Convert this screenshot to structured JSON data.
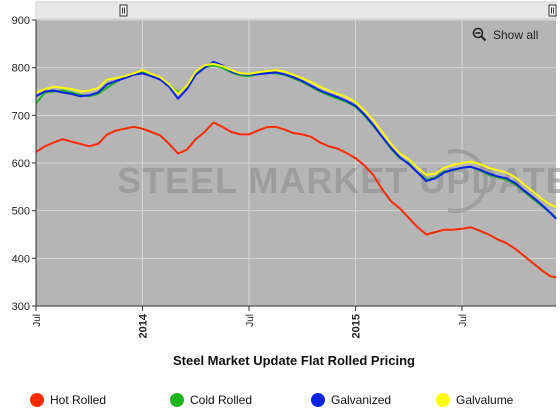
{
  "chart_data": {
    "type": "line",
    "title": "Steel Market Update Flat Rolled Pricing",
    "watermark": "STEEL MARKET UPDATE",
    "show_all_label": "Show all",
    "x_ticks": [
      {
        "t": 0.0,
        "label": "Jul",
        "bold": false
      },
      {
        "t": 6.0,
        "label": "2014",
        "bold": true
      },
      {
        "t": 12.0,
        "label": "Jul",
        "bold": false
      },
      {
        "t": 18.0,
        "label": "2015",
        "bold": true
      },
      {
        "t": 24.0,
        "label": "Jul",
        "bold": false
      }
    ],
    "xlim": [
      0,
      29.3
    ],
    "ylim": [
      300,
      900
    ],
    "yticks": [
      300,
      400,
      500,
      600,
      700,
      800,
      900
    ],
    "grid": true,
    "legend_position": "bottom",
    "x": [
      0,
      0.5,
      1.0,
      1.5,
      2.0,
      2.5,
      3.0,
      3.5,
      4.0,
      4.5,
      5.0,
      5.5,
      6.0,
      6.5,
      7.0,
      7.5,
      8.0,
      8.5,
      9.0,
      9.5,
      10.0,
      10.5,
      11.0,
      11.5,
      12.0,
      12.5,
      13.0,
      13.5,
      14.0,
      14.5,
      15.0,
      15.5,
      16.0,
      16.5,
      17.0,
      17.5,
      18.0,
      18.5,
      19.0,
      19.5,
      20.0,
      20.5,
      21.0,
      21.5,
      22.0,
      22.5,
      23.0,
      23.5,
      24.0,
      24.5,
      25.0,
      25.5,
      26.0,
      26.5,
      27.0,
      27.5,
      28.0,
      28.5,
      29.0,
      29.3
    ],
    "series": [
      {
        "name": "Hot Rolled",
        "color": "#ff2a00",
        "values": [
          623,
          635,
          643,
          650,
          645,
          640,
          635,
          640,
          660,
          668,
          672,
          676,
          672,
          665,
          658,
          640,
          620,
          628,
          650,
          665,
          685,
          676,
          665,
          660,
          660,
          668,
          675,
          676,
          670,
          663,
          660,
          655,
          643,
          635,
          630,
          621,
          610,
          595,
          575,
          545,
          520,
          505,
          485,
          465,
          450,
          455,
          460,
          460,
          462,
          465,
          458,
          450,
          440,
          432,
          420,
          405,
          390,
          375,
          362,
          360
        ]
      },
      {
        "name": "Cold Rolled",
        "color": "#1cb51c",
        "values": [
          725,
          748,
          750,
          752,
          748,
          743,
          740,
          745,
          758,
          770,
          780,
          786,
          790,
          785,
          778,
          765,
          748,
          760,
          790,
          800,
          805,
          800,
          790,
          784,
          782,
          786,
          790,
          788,
          785,
          778,
          770,
          760,
          750,
          742,
          735,
          728,
          718,
          700,
          678,
          655,
          630,
          610,
          600,
          580,
          565,
          570,
          582,
          585,
          590,
          592,
          585,
          575,
          570,
          565,
          555,
          540,
          525,
          510,
          495,
          485
        ]
      },
      {
        "name": "Galvanized",
        "color": "#0a22e6",
        "values": [
          740,
          750,
          752,
          748,
          745,
          740,
          742,
          748,
          765,
          772,
          778,
          785,
          788,
          782,
          775,
          760,
          735,
          755,
          785,
          800,
          812,
          805,
          792,
          786,
          785,
          786,
          788,
          790,
          786,
          780,
          772,
          762,
          752,
          745,
          738,
          730,
          720,
          702,
          680,
          655,
          632,
          612,
          598,
          580,
          562,
          568,
          580,
          586,
          590,
          592,
          586,
          578,
          572,
          568,
          558,
          542,
          528,
          512,
          495,
          483
        ]
      },
      {
        "name": "Galvalume",
        "color": "#ffff00",
        "values": [
          748,
          755,
          760,
          758,
          755,
          750,
          752,
          757,
          775,
          778,
          782,
          788,
          795,
          787,
          780,
          765,
          745,
          762,
          792,
          805,
          808,
          803,
          795,
          788,
          787,
          790,
          793,
          795,
          792,
          785,
          778,
          770,
          760,
          752,
          745,
          738,
          728,
          710,
          690,
          665,
          640,
          620,
          608,
          590,
          575,
          578,
          590,
          596,
          600,
          603,
          598,
          590,
          585,
          580,
          570,
          555,
          540,
          525,
          512,
          508
        ]
      }
    ]
  }
}
